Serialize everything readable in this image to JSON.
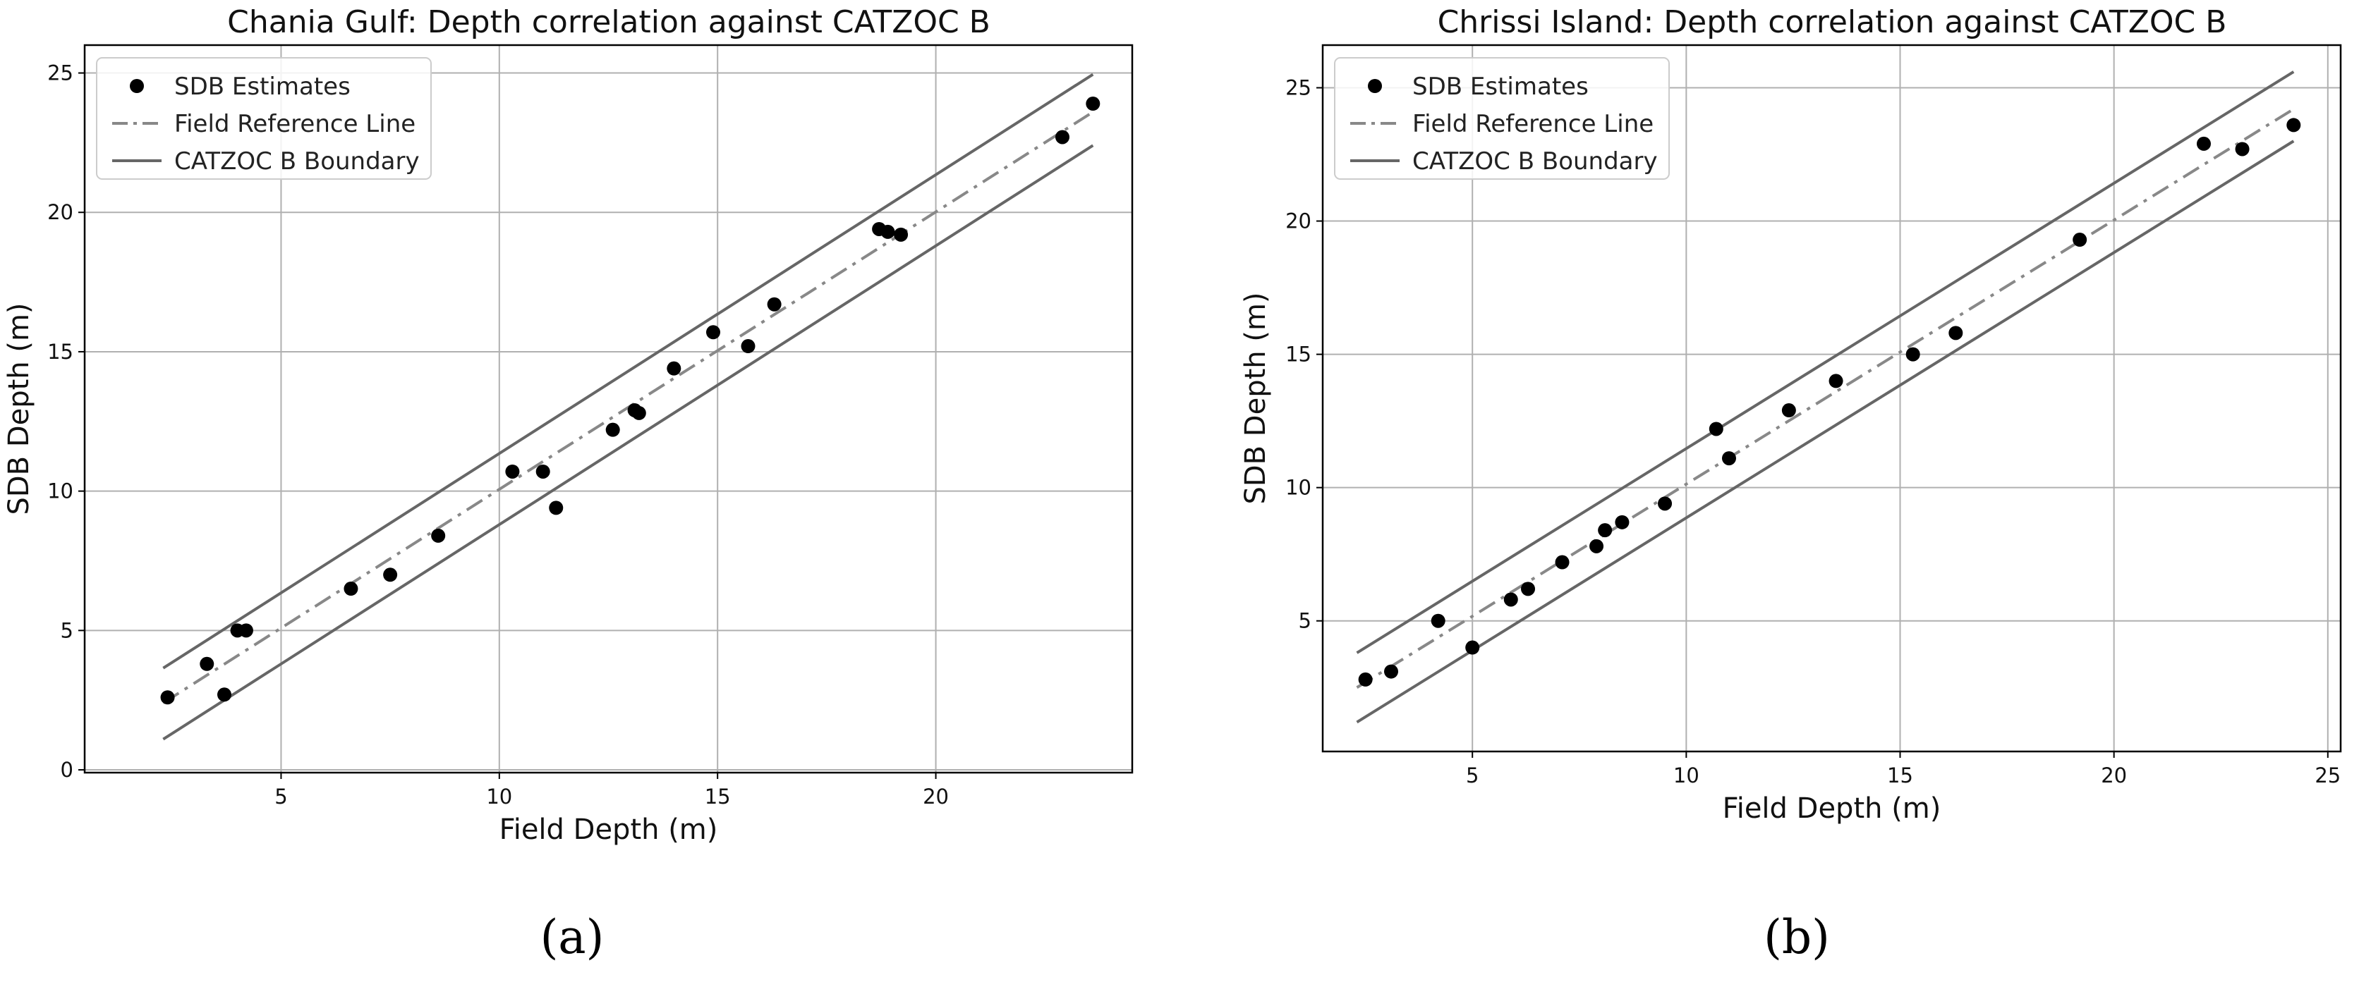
{
  "colors": {
    "points": "#000000",
    "reference": "#888888",
    "boundary": "#666666",
    "grid": "#b0b0b0"
  },
  "chart_data": [
    {
      "type": "scatter",
      "panel": "a",
      "panel_label": "(a)",
      "title": "Chania Gulf: Depth correlation against CATZOC B",
      "xlabel": "Field Depth (m)",
      "ylabel": "SDB Depth (m)",
      "xlim": [
        0.5,
        24.5
      ],
      "ylim": [
        -0.1,
        26.0
      ],
      "xticks": [
        5,
        10,
        15,
        20
      ],
      "yticks": [
        0,
        5,
        10,
        15,
        20,
        25
      ],
      "grid": true,
      "legend_position": "upper-left",
      "legend": [
        "SDB Estimates",
        "Field Reference Line",
        "CATZOC B Boundary"
      ],
      "series": [
        {
          "name": "SDB Estimates",
          "kind": "points",
          "x": [
            2.4,
            3.3,
            3.7,
            4.0,
            4.2,
            6.6,
            7.5,
            8.6,
            10.3,
            11.0,
            11.3,
            12.6,
            13.1,
            13.2,
            14.0,
            14.9,
            15.7,
            16.3,
            18.7,
            18.9,
            19.2,
            22.9,
            23.6
          ],
          "y": [
            2.6,
            3.8,
            2.7,
            5.0,
            5.0,
            6.5,
            7.0,
            8.4,
            10.7,
            10.7,
            9.4,
            12.2,
            12.9,
            12.8,
            14.4,
            15.7,
            15.2,
            16.7,
            19.4,
            19.3,
            19.2,
            22.7,
            23.9
          ]
        },
        {
          "name": "Field Reference Line",
          "kind": "dashdot",
          "x": [
            2.3,
            23.6
          ],
          "y": [
            2.4,
            23.6
          ]
        },
        {
          "name": "CATZOC B Boundary",
          "kind": "solid",
          "x": [
            2.3,
            23.6
          ],
          "y": [
            3.65,
            24.95
          ]
        },
        {
          "name": "CATZOC B Boundary",
          "kind": "solid",
          "x": [
            2.3,
            23.6
          ],
          "y": [
            1.1,
            22.4
          ]
        }
      ]
    },
    {
      "type": "scatter",
      "panel": "b",
      "panel_label": "(b)",
      "title": "Chrissi Island: Depth correlation against CATZOC B",
      "xlabel": "Field Depth (m)",
      "ylabel": "SDB Depth (m)",
      "xlim": [
        1.5,
        25.3
      ],
      "ylim": [
        0.1,
        26.6
      ],
      "xticks": [
        5,
        10,
        15,
        20,
        25
      ],
      "yticks": [
        5,
        10,
        15,
        20,
        25
      ],
      "grid": true,
      "legend_position": "upper-left",
      "legend": [
        "SDB Estimates",
        "Field Reference Line",
        "CATZOC B Boundary"
      ],
      "series": [
        {
          "name": "SDB Estimates",
          "kind": "points",
          "x": [
            2.5,
            3.1,
            4.2,
            5.0,
            5.9,
            6.3,
            7.1,
            7.9,
            8.1,
            8.5,
            9.5,
            10.7,
            11.0,
            12.4,
            13.5,
            15.3,
            16.3,
            19.2,
            22.1,
            23.0,
            24.2
          ],
          "y": [
            2.8,
            3.1,
            5.0,
            4.0,
            5.8,
            6.2,
            7.2,
            7.8,
            8.4,
            8.7,
            9.4,
            12.2,
            11.1,
            12.9,
            14.0,
            15.0,
            15.8,
            19.3,
            22.9,
            22.7,
            23.6
          ]
        },
        {
          "name": "Field Reference Line",
          "kind": "dashdot",
          "x": [
            2.3,
            24.2
          ],
          "y": [
            2.5,
            24.2
          ]
        },
        {
          "name": "CATZOC B Boundary",
          "kind": "solid",
          "x": [
            2.3,
            24.2
          ],
          "y": [
            3.8,
            25.6
          ]
        },
        {
          "name": "CATZOC B Boundary",
          "kind": "solid",
          "x": [
            2.3,
            24.2
          ],
          "y": [
            1.2,
            23.0
          ]
        }
      ]
    }
  ]
}
